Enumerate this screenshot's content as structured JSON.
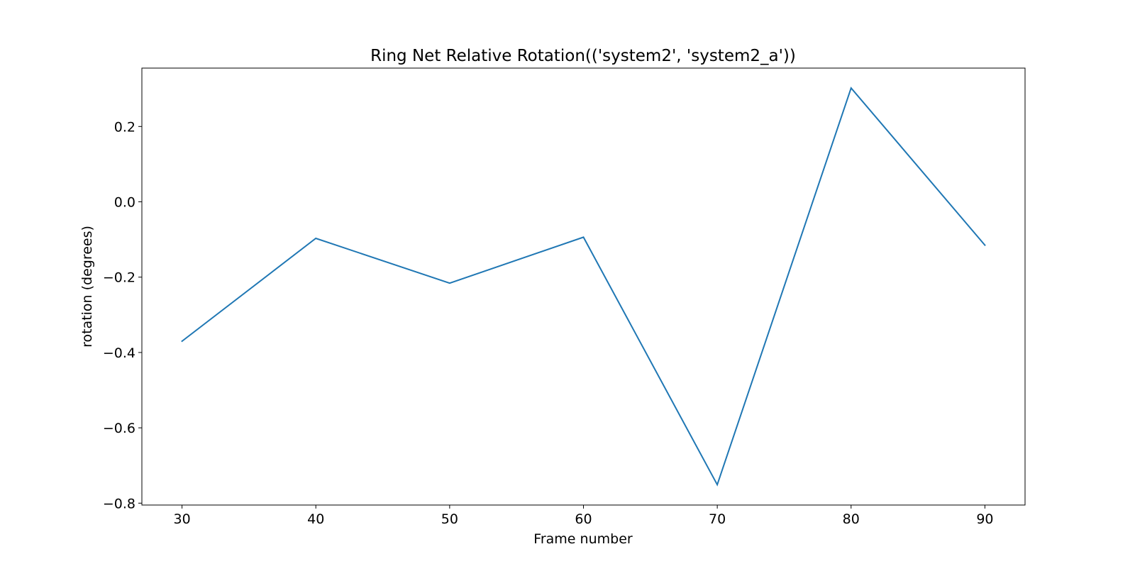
{
  "chart_data": {
    "type": "line",
    "title": "Ring Net Relative Rotation(('system2', 'system2_a'))",
    "xlabel": "Frame number",
    "ylabel": "rotation (degrees)",
    "xlim": [
      27,
      93
    ],
    "ylim": [
      -0.805,
      0.355
    ],
    "xticks": [
      30,
      40,
      50,
      60,
      70,
      80,
      90
    ],
    "yticks": [
      -0.8,
      -0.6,
      -0.4,
      -0.2,
      0.0,
      0.2
    ],
    "ytick_labels": [
      "−0.8",
      "−0.6",
      "−0.4",
      "−0.2",
      "0.0",
      "0.2"
    ],
    "grid": false,
    "legend": "none",
    "series": [
      {
        "color": "#1f77b4",
        "x": [
          30,
          40,
          50,
          60,
          70,
          80,
          90
        ],
        "y": [
          -0.37,
          -0.097,
          -0.216,
          -0.094,
          -0.751,
          0.302,
          -0.115
        ]
      }
    ]
  }
}
